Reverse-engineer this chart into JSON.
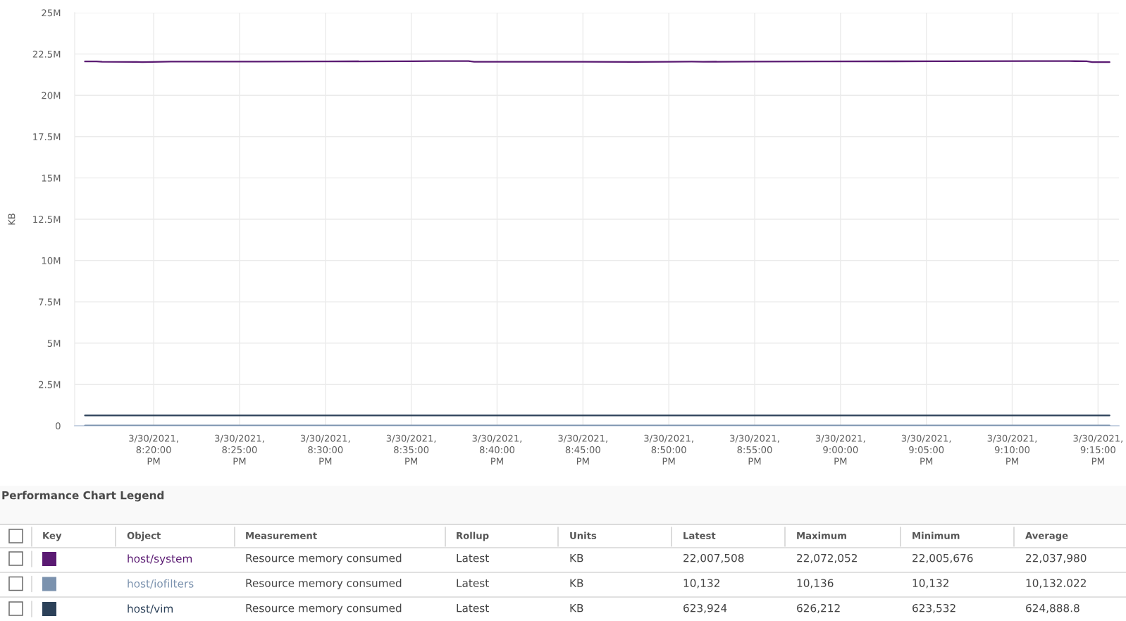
{
  "chart_data": {
    "type": "line",
    "ylabel": "KB",
    "legend_title": "Performance Chart Legend",
    "legend": "bottom",
    "grid": true,
    "line_style": "solid",
    "xlim": [
      "2021-03-30T20:15:24",
      "2021-03-30T21:16:13"
    ],
    "xticks": [
      {
        "value": "2021-03-30T20:20",
        "label": "3/30/2021,\n8:20:00\nPM"
      },
      {
        "value": "2021-03-30T20:25",
        "label": "3/30/2021,\n8:25:00\nPM"
      },
      {
        "value": "2021-03-30T20:30",
        "label": "3/30/2021,\n8:30:00\nPM"
      },
      {
        "value": "2021-03-30T20:35",
        "label": "3/30/2021,\n8:35:00\nPM"
      },
      {
        "value": "2021-03-30T20:40",
        "label": "3/30/2021,\n8:40:00\nPM"
      },
      {
        "value": "2021-03-30T20:45",
        "label": "3/30/2021,\n8:45:00\nPM"
      },
      {
        "value": "2021-03-30T20:50",
        "label": "3/30/2021,\n8:50:00\nPM"
      },
      {
        "value": "2021-03-30T20:55",
        "label": "3/30/2021,\n8:55:00\nPM"
      },
      {
        "value": "2021-03-30T21:00",
        "label": "3/30/2021,\n9:00:00\nPM"
      },
      {
        "value": "2021-03-30T21:05",
        "label": "3/30/2021,\n9:05:00\nPM"
      },
      {
        "value": "2021-03-30T21:10",
        "label": "3/30/2021,\n9:10:00\nPM"
      },
      {
        "value": "2021-03-30T21:15",
        "label": "3/30/2021,\n9:15:00\nPM"
      }
    ],
    "ylim": [
      0,
      25000000
    ],
    "yticks": [
      0,
      {
        "value": 2500000,
        "label": "2.5M"
      },
      {
        "value": 5000000,
        "label": "5M"
      },
      {
        "value": 7500000,
        "label": "7.5M"
      },
      {
        "value": 10000000,
        "label": "10M"
      },
      {
        "value": 12500000,
        "label": "12.5M"
      },
      {
        "value": 15000000,
        "label": "15M"
      },
      {
        "value": 17500000,
        "label": "17.5M"
      },
      {
        "value": 20000000,
        "label": "20M"
      },
      {
        "value": 22500000,
        "label": "22.5M"
      },
      {
        "value": 25000000,
        "label": "25M"
      }
    ],
    "series": [
      {
        "name": "host/system",
        "color": "#5a1a72",
        "x": [
          "2021-03-30T20:16",
          "2021-03-30T20:16:40",
          "2021-03-30T20:17",
          "2021-03-30T20:19",
          "2021-03-30T20:19:20",
          "2021-03-30T20:21",
          "2021-03-30T20:26",
          "2021-03-30T20:30",
          "2021-03-30T20:35",
          "2021-03-30T20:36:20",
          "2021-03-30T20:38:20",
          "2021-03-30T20:38:40",
          "2021-03-30T20:45",
          "2021-03-30T20:48",
          "2021-03-30T20:50",
          "2021-03-30T20:51:20",
          "2021-03-30T20:52",
          "2021-03-30T20:55",
          "2021-03-30T20:59",
          "2021-03-30T21:06",
          "2021-03-30T21:11",
          "2021-03-30T21:13:20",
          "2021-03-30T21:14:20",
          "2021-03-30T21:14:40",
          "2021-03-30T21:15:40"
        ],
        "values": [
          22050000,
          22050000,
          22030000,
          22020000,
          22010000,
          22040000,
          22040000,
          22050000,
          22060000,
          22070000,
          22070000,
          22030000,
          22030000,
          22020000,
          22030000,
          22040000,
          22030000,
          22040000,
          22050000,
          22060000,
          22070000,
          22070000,
          22060000,
          22010000,
          22010000
        ]
      },
      {
        "name": "host/iofilters",
        "color": "#7b92ae",
        "x": [
          "2021-03-30T20:16",
          "2021-03-30T21:15:40"
        ],
        "values": [
          10132,
          10132
        ]
      },
      {
        "name": "host/vim",
        "color": "#2c4159",
        "x": [
          "2021-03-30T20:16",
          "2021-03-30T20:30",
          "2021-03-30T20:45",
          "2021-03-30T21:00",
          "2021-03-30T21:15:40"
        ],
        "values": [
          625000,
          626000,
          625000,
          624000,
          624000
        ]
      }
    ],
    "annotations": [
      "Key",
      "Object",
      "Measurement",
      "Rollup",
      "Units",
      "Latest",
      "Maximum",
      "Minimum",
      "Average",
      "Resource memory consumed",
      "Latest",
      "KB",
      "22,007,508",
      "22,072,052",
      "22,005,676",
      "22,037,980",
      "Resource memory consumed",
      "Latest",
      "KB",
      "10,132",
      "10,136",
      "10,132",
      "10,132.022",
      "Resource memory consumed",
      "Latest",
      "KB",
      "623,924",
      "626,212",
      "623,532",
      "624,888.8"
    ]
  }
}
